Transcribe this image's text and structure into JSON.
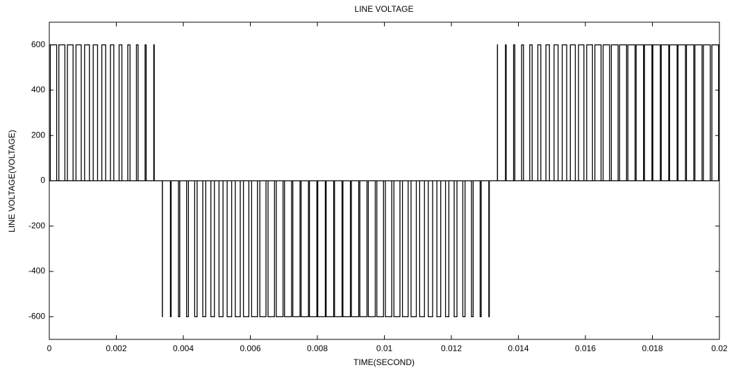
{
  "chart_data": {
    "type": "pulse",
    "title": "LINE VOLTAGE",
    "x_label": "TIME(SECOND)",
    "y_label": "LINE VOLTAGE(VOLTAGE)",
    "color": "#000000",
    "xlim": [
      0,
      0.02
    ],
    "xticks": [
      0,
      0.002,
      0.004,
      0.006,
      0.008,
      0.01,
      0.012,
      0.014,
      0.016,
      0.018,
      0.02
    ],
    "ylim": [
      -700,
      700
    ],
    "yticks": [
      -600,
      -400,
      -200,
      0,
      200,
      400,
      600
    ],
    "grid": false,
    "x_start": [
      2.98e-05,
      0.0002849,
      0.0005404,
      0.0007965,
      0.0010531,
      0.0013101,
      0.0015675,
      0.0018253,
      0.0020833,
      0.0023416,
      0.0026001,
      0.0028589,
      0.0031177,
      0.0033735,
      0.0036146,
      0.003856,
      0.0040973,
      0.0043389,
      0.0045806,
      0.0048226,
      0.0050649,
      0.0053077,
      0.0055509,
      0.0057944,
      0.0060385,
      0.0062831,
      0.0065284,
      0.0067741,
      0.0070205,
      0.0072676,
      0.0075153,
      0.0077636,
      0.0080127,
      0.0082625,
      0.0085129,
      0.0087641,
      0.009016,
      0.0092685,
      0.0095216,
      0.0097754,
      0.0100298,
      0.0102849,
      0.0105404,
      0.0107965,
      0.0110531,
      0.0113101,
      0.0115675,
      0.0118253,
      0.0120833,
      0.0123416,
      0.0126001,
      0.0128589,
      0.0131177,
      0.0133735,
      0.0136146,
      0.013856,
      0.0140973,
      0.0143389,
      0.0145806,
      0.0148226,
      0.0150649,
      0.0153077,
      0.0155509,
      0.0157944,
      0.0160385,
      0.0162831,
      0.0165284,
      0.0167741,
      0.0170205,
      0.0172676,
      0.0175153,
      0.0177636,
      0.0180127,
      0.0182625,
      0.0185129,
      0.0187641,
      0.019016,
      0.0192685,
      0.0195216,
      0.0197754
    ],
    "x_end": [
      0.0002202,
      0.0004651,
      0.0007096,
      0.0009535,
      0.0011969,
      0.0014399,
      0.0016825,
      0.0019247,
      0.0021667,
      0.0024084,
      0.0026499,
      0.0028911,
      0.0031323,
      0.0033765,
      0.0036354,
      0.003894,
      0.0041527,
      0.0044111,
      0.0046694,
      0.0049274,
      0.0051851,
      0.0054423,
      0.0056991,
      0.0059556,
      0.0062115,
      0.0064669,
      0.0067216,
      0.0069759,
      0.0072295,
      0.0074824,
      0.0077347,
      0.0079864,
      0.0082373,
      0.0084875,
      0.0087371,
      0.0089859,
      0.009234,
      0.0094815,
      0.0097284,
      0.0099746,
      0.0102202,
      0.0104651,
      0.0107096,
      0.0109535,
      0.0111969,
      0.0114399,
      0.0116825,
      0.0119247,
      0.0121667,
      0.0124084,
      0.0126499,
      0.0128911,
      0.0131323,
      0.0133765,
      0.0136354,
      0.013894,
      0.0141527,
      0.0144111,
      0.0146694,
      0.0149274,
      0.0151851,
      0.0154423,
      0.0156991,
      0.0159556,
      0.0162115,
      0.0164669,
      0.0167216,
      0.0169759,
      0.0172295,
      0.0174824,
      0.0177347,
      0.0179864,
      0.0182373,
      0.0184875,
      0.0187371,
      0.0189859,
      0.019234,
      0.0194815,
      0.0197284,
      0.0199746
    ],
    "values": [
      600,
      600,
      600,
      600,
      600,
      600,
      600,
      600,
      600,
      600,
      600,
      600,
      600,
      -600,
      -600,
      -600,
      -600,
      -600,
      -600,
      -600,
      -600,
      -600,
      -600,
      -600,
      -600,
      -600,
      -600,
      -600,
      -600,
      -600,
      -600,
      -600,
      -600,
      -600,
      -600,
      -600,
      -600,
      -600,
      -600,
      -600,
      -600,
      -600,
      -600,
      -600,
      -600,
      -600,
      -600,
      -600,
      -600,
      -600,
      -600,
      -600,
      -600,
      600,
      600,
      600,
      600,
      600,
      600,
      600,
      600,
      600,
      600,
      600,
      600,
      600,
      600,
      600,
      600,
      600,
      600,
      600,
      600,
      600,
      600,
      600,
      600,
      600,
      600,
      600
    ]
  }
}
